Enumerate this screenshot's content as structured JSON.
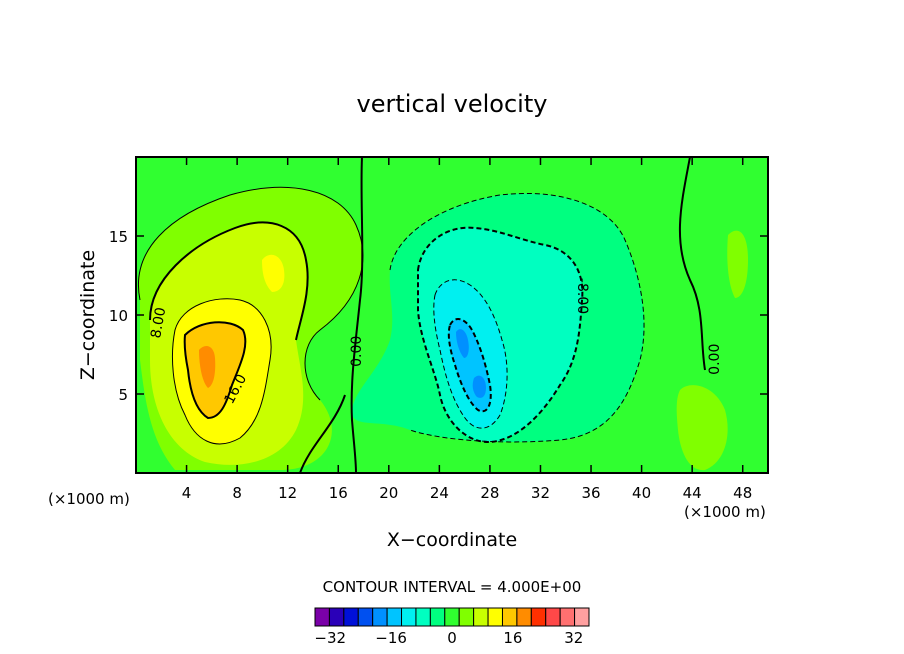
{
  "chart_data": {
    "type": "contour",
    "title": "vertical velocity",
    "xlabel": "X−coordinate",
    "ylabel": "Z−coordinate",
    "x_unit_left": "(×1000 m)",
    "x_unit_right": "(×1000 m)",
    "xlim": [
      0,
      50
    ],
    "ylim": [
      0,
      20
    ],
    "x_ticks": [
      4,
      8,
      12,
      16,
      20,
      24,
      28,
      32,
      36,
      40,
      44,
      48
    ],
    "y_ticks": [
      5,
      10,
      15
    ],
    "contour_interval_label": "CONTOUR INTERVAL = 4.000E+00",
    "colorbar": {
      "levels": [
        -36,
        -32,
        -28,
        -24,
        -20,
        -16,
        -12,
        -8,
        -4,
        0,
        4,
        8,
        12,
        16,
        20,
        24,
        28,
        32,
        36
      ],
      "tick_labels": [
        "−32",
        "−16",
        "0",
        "16",
        "32"
      ],
      "tick_values": [
        -32,
        -16,
        0,
        16,
        32
      ],
      "colors": [
        "#7a00a8",
        "#2a00b8",
        "#0010d8",
        "#0050f0",
        "#0090ff",
        "#00c4ff",
        "#00f0f0",
        "#00ffc0",
        "#00ff80",
        "#30ff30",
        "#80ff00",
        "#c8ff00",
        "#ffff00",
        "#ffc800",
        "#ff8c00",
        "#ff3000",
        "#ff4848",
        "#ff7070",
        "#ffa0a0"
      ]
    },
    "contour_labels": [
      {
        "text": "8.00",
        "x": 1.8,
        "y": 9.5,
        "angle": -80
      },
      {
        "text": "16.0",
        "x": 7.9,
        "y": 5.3,
        "angle": -62
      },
      {
        "text": "0.00",
        "x": 17.5,
        "y": 7.7,
        "angle": -90
      },
      {
        "text": "-8.00",
        "x": 35.3,
        "y": 11.2,
        "angle": 90
      },
      {
        "text": "0.00",
        "x": 45.8,
        "y": 7.2,
        "angle": -90
      }
    ],
    "background_color": "#30ff30"
  }
}
